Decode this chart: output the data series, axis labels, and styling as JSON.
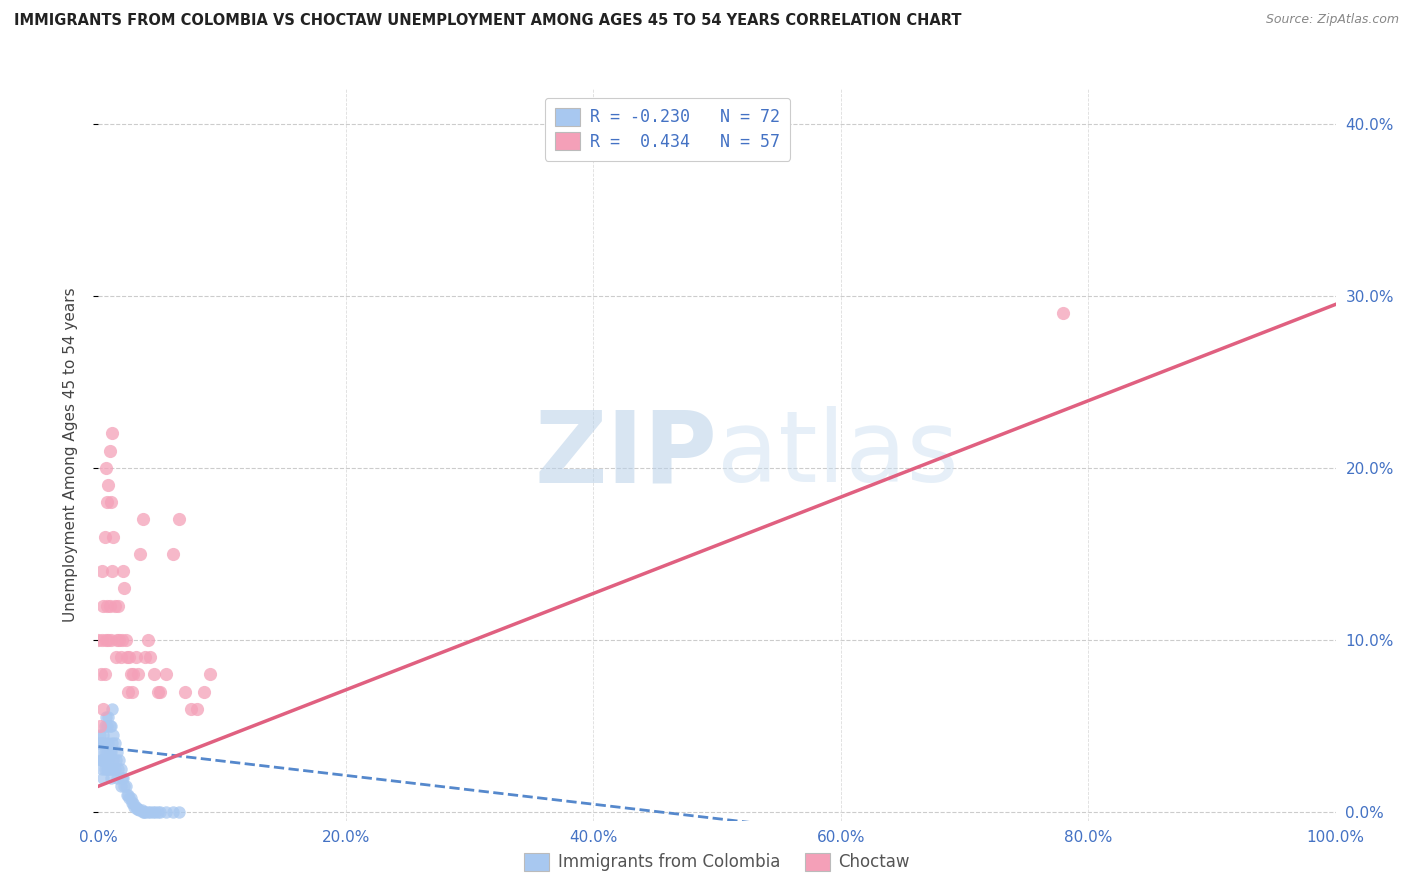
{
  "title": "IMMIGRANTS FROM COLOMBIA VS CHOCTAW UNEMPLOYMENT AMONG AGES 45 TO 54 YEARS CORRELATION CHART",
  "source": "Source: ZipAtlas.com",
  "ylabel": "Unemployment Among Ages 45 to 54 years",
  "xlim": [
    0,
    1.0
  ],
  "ylim": [
    -0.005,
    0.42
  ],
  "x_ticks": [
    0.0,
    0.2,
    0.4,
    0.6,
    0.8,
    1.0
  ],
  "x_tick_labels": [
    "0.0%",
    "20.0%",
    "40.0%",
    "60.0%",
    "80.0%",
    "100.0%"
  ],
  "y_ticks": [
    0.0,
    0.1,
    0.2,
    0.3,
    0.4
  ],
  "y_tick_labels": [
    "0.0%",
    "10.0%",
    "20.0%",
    "30.0%",
    "40.0%"
  ],
  "watermark_zip": "ZIP",
  "watermark_atlas": "atlas",
  "legend_line1": "R = -0.230   N = 72",
  "legend_line2": "R =  0.434   N = 57",
  "colombia_color": "#a8c8f0",
  "choctaw_color": "#f4a0b8",
  "colombia_line_color": "#5588cc",
  "choctaw_line_color": "#e06080",
  "colombia_scatter_x": [
    0.0,
    0.001,
    0.001,
    0.002,
    0.002,
    0.003,
    0.003,
    0.003,
    0.004,
    0.004,
    0.004,
    0.005,
    0.005,
    0.005,
    0.006,
    0.006,
    0.006,
    0.007,
    0.007,
    0.007,
    0.008,
    0.008,
    0.008,
    0.008,
    0.009,
    0.009,
    0.009,
    0.01,
    0.01,
    0.01,
    0.011,
    0.011,
    0.011,
    0.012,
    0.012,
    0.013,
    0.013,
    0.014,
    0.015,
    0.015,
    0.016,
    0.017,
    0.018,
    0.018,
    0.019,
    0.02,
    0.021,
    0.022,
    0.023,
    0.024,
    0.025,
    0.026,
    0.027,
    0.028,
    0.029,
    0.03,
    0.031,
    0.032,
    0.033,
    0.035,
    0.036,
    0.037,
    0.038,
    0.04,
    0.042,
    0.044,
    0.046,
    0.048,
    0.05,
    0.055,
    0.06,
    0.065
  ],
  "colombia_scatter_y": [
    0.04,
    0.035,
    0.045,
    0.03,
    0.04,
    0.025,
    0.03,
    0.04,
    0.02,
    0.03,
    0.045,
    0.025,
    0.035,
    0.05,
    0.03,
    0.04,
    0.055,
    0.025,
    0.035,
    0.05,
    0.025,
    0.03,
    0.04,
    0.055,
    0.025,
    0.035,
    0.05,
    0.02,
    0.035,
    0.05,
    0.025,
    0.04,
    0.06,
    0.03,
    0.045,
    0.025,
    0.04,
    0.03,
    0.02,
    0.035,
    0.025,
    0.03,
    0.015,
    0.025,
    0.02,
    0.02,
    0.015,
    0.015,
    0.01,
    0.01,
    0.008,
    0.008,
    0.005,
    0.005,
    0.003,
    0.003,
    0.002,
    0.002,
    0.001,
    0.001,
    0.0,
    0.0,
    0.0,
    0.0,
    0.0,
    0.0,
    0.0,
    0.0,
    0.0,
    0.0,
    0.0,
    0.0
  ],
  "choctaw_scatter_x": [
    0.0,
    0.001,
    0.002,
    0.003,
    0.003,
    0.004,
    0.004,
    0.005,
    0.005,
    0.006,
    0.006,
    0.007,
    0.007,
    0.008,
    0.008,
    0.009,
    0.009,
    0.01,
    0.01,
    0.011,
    0.011,
    0.012,
    0.013,
    0.014,
    0.015,
    0.016,
    0.017,
    0.018,
    0.019,
    0.02,
    0.021,
    0.022,
    0.023,
    0.024,
    0.025,
    0.026,
    0.027,
    0.028,
    0.03,
    0.032,
    0.034,
    0.036,
    0.038,
    0.04,
    0.042,
    0.045,
    0.048,
    0.05,
    0.055,
    0.06,
    0.065,
    0.07,
    0.075,
    0.08,
    0.085,
    0.09,
    0.78
  ],
  "choctaw_scatter_y": [
    0.1,
    0.05,
    0.08,
    0.1,
    0.14,
    0.06,
    0.12,
    0.08,
    0.16,
    0.1,
    0.2,
    0.12,
    0.18,
    0.1,
    0.19,
    0.12,
    0.21,
    0.1,
    0.18,
    0.14,
    0.22,
    0.16,
    0.12,
    0.09,
    0.1,
    0.12,
    0.1,
    0.09,
    0.1,
    0.14,
    0.13,
    0.1,
    0.09,
    0.07,
    0.09,
    0.08,
    0.07,
    0.08,
    0.09,
    0.08,
    0.15,
    0.17,
    0.09,
    0.1,
    0.09,
    0.08,
    0.07,
    0.07,
    0.08,
    0.15,
    0.17,
    0.07,
    0.06,
    0.06,
    0.07,
    0.08,
    0.29
  ],
  "colombia_trend_x": [
    0.0,
    0.55
  ],
  "colombia_trend_y": [
    0.038,
    -0.008
  ],
  "choctaw_trend_x": [
    0.0,
    1.0
  ],
  "choctaw_trend_y": [
    0.015,
    0.295
  ]
}
